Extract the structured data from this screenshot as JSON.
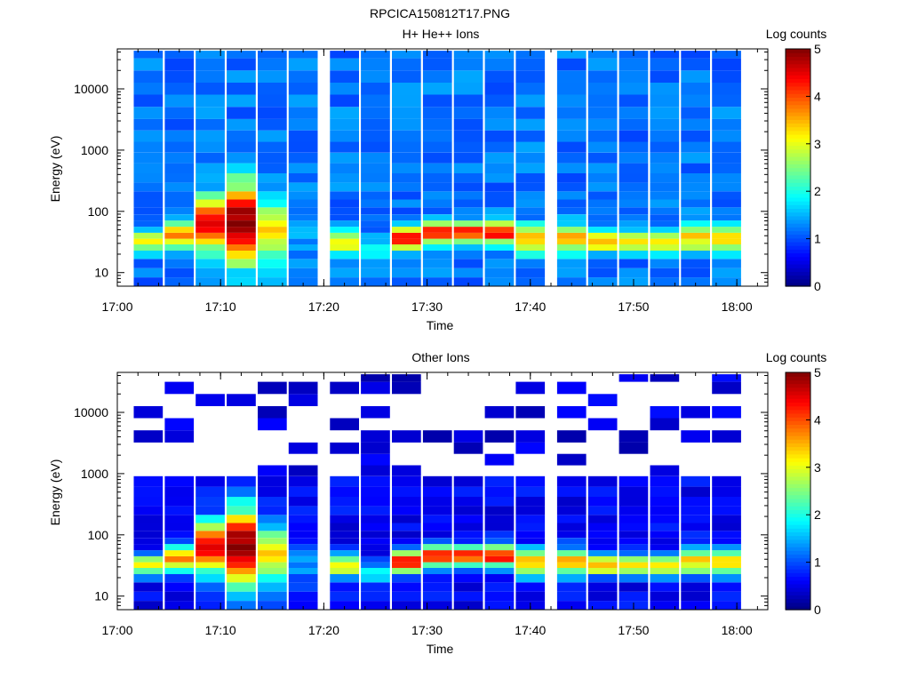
{
  "figure": {
    "title": "RPCICA150812T17.PNG"
  },
  "chart_data": [
    {
      "type": "heatmap",
      "title": "H+ He++ Ions",
      "xlabel": "Time",
      "ylabel": "Energy (eV)",
      "x_ticks": [
        "17:00",
        "17:10",
        "17:20",
        "17:30",
        "17:40",
        "17:50",
        "18:00"
      ],
      "xlim": [
        "17:00",
        "18:03"
      ],
      "y_scale": "log",
      "y_ticks": [
        10,
        100,
        1000,
        10000
      ],
      "ylim": [
        6,
        45000
      ],
      "colorbar": {
        "label": "Log counts",
        "ticks": [
          0,
          1,
          2,
          3,
          4,
          5
        ],
        "range": [
          0,
          5
        ],
        "colormap": "jet"
      },
      "time_columns": [
        "17:03",
        "17:06",
        "17:09",
        "17:12",
        "17:15",
        "17:18",
        "17:22",
        "17:25",
        "17:28",
        "17:31",
        "17:34",
        "17:37",
        "17:40",
        "17:44",
        "17:47",
        "17:50",
        "17:53",
        "17:56",
        "17:59"
      ],
      "energy_bins_eV": [
        7,
        10,
        14,
        20,
        26,
        32,
        40,
        50,
        63,
        80,
        100,
        135,
        180,
        250,
        350,
        500,
        750,
        1100,
        1700,
        2600,
        4000,
        6500,
        10000,
        16000,
        25000,
        40000
      ],
      "peak_log_counts": [
        3.1,
        3.6,
        4.5,
        5.0,
        3.2,
        1.4,
        3.3,
        2.2,
        4.3,
        4.4,
        4.3,
        4.4,
        3.6,
        3.5,
        3.4,
        3.1,
        3.3,
        3.3,
        3.4
      ],
      "peak_energy_eV": [
        32,
        40,
        63,
        63,
        45,
        30,
        32,
        24,
        36,
        45,
        45,
        45,
        36,
        36,
        32,
        32,
        32,
        36,
        36
      ],
      "peak_width_decades": [
        0.12,
        0.15,
        0.3,
        0.45,
        0.35,
        0.2,
        0.12,
        0.1,
        0.12,
        0.12,
        0.12,
        0.12,
        0.15,
        0.15,
        0.12,
        0.12,
        0.12,
        0.15,
        0.15
      ],
      "background_log_counts": 1.2,
      "sparse_high_energy": false
    },
    {
      "type": "heatmap",
      "title": "Other Ions",
      "xlabel": "Time",
      "ylabel": "Energy (eV)",
      "x_ticks": [
        "17:00",
        "17:10",
        "17:20",
        "17:30",
        "17:40",
        "17:50",
        "18:00"
      ],
      "xlim": [
        "17:00",
        "18:03"
      ],
      "y_scale": "log",
      "y_ticks": [
        10,
        100,
        1000,
        10000
      ],
      "ylim": [
        6,
        45000
      ],
      "colorbar": {
        "label": "Log counts",
        "ticks": [
          0,
          1,
          2,
          3,
          4,
          5
        ],
        "range": [
          0,
          5
        ],
        "colormap": "jet"
      },
      "time_columns": [
        "17:03",
        "17:06",
        "17:09",
        "17:12",
        "17:15",
        "17:18",
        "17:22",
        "17:25",
        "17:28",
        "17:31",
        "17:34",
        "17:37",
        "17:40",
        "17:44",
        "17:47",
        "17:50",
        "17:53",
        "17:56",
        "17:59"
      ],
      "energy_bins_eV": [
        7,
        10,
        14,
        20,
        26,
        32,
        40,
        50,
        63,
        80,
        100,
        135,
        180,
        250,
        350,
        500,
        750,
        1100,
        1700,
        2600,
        4000,
        6500,
        10000,
        16000,
        25000,
        40000
      ],
      "peak_log_counts": [
        3.1,
        3.6,
        4.5,
        5.0,
        3.2,
        1.4,
        3.3,
        2.2,
        4.3,
        4.4,
        4.3,
        4.4,
        3.6,
        3.5,
        3.4,
        3.1,
        3.3,
        3.3,
        3.4
      ],
      "peak_energy_eV": [
        32,
        40,
        63,
        63,
        45,
        30,
        32,
        24,
        36,
        45,
        45,
        45,
        36,
        36,
        32,
        32,
        32,
        36,
        36
      ],
      "peak_width_decades": [
        0.12,
        0.15,
        0.3,
        0.45,
        0.35,
        0.2,
        0.12,
        0.1,
        0.12,
        0.12,
        0.12,
        0.12,
        0.15,
        0.15,
        0.12,
        0.12,
        0.12,
        0.15,
        0.15
      ],
      "background_log_counts": 0.6,
      "sparse_high_energy": true,
      "sparse_above_eV": 750
    }
  ]
}
